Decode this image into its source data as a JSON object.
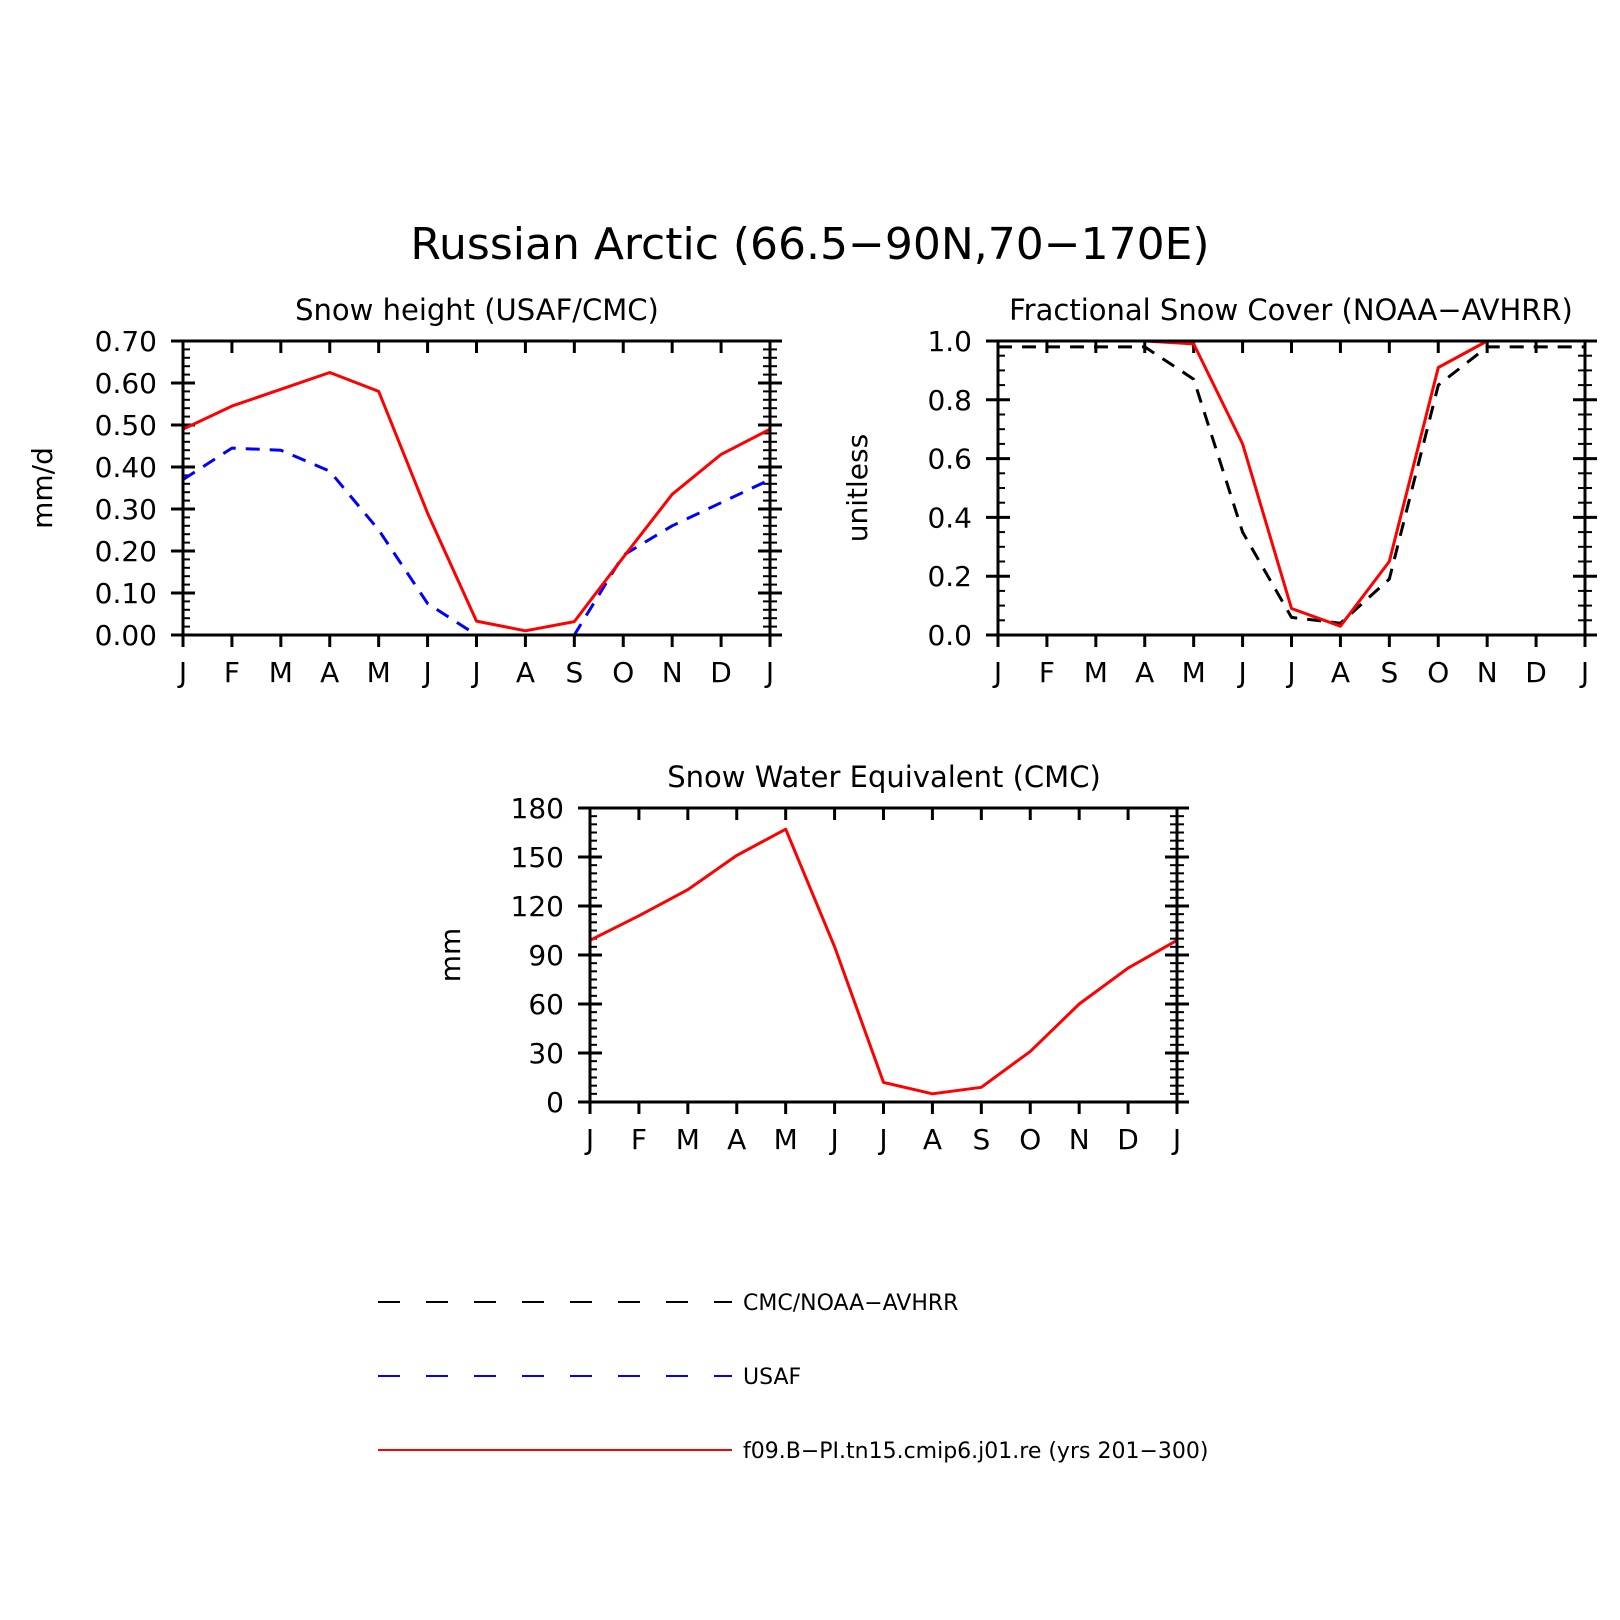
{
  "figure": {
    "title": "Russian Arctic (66.5−90N,70−170E)"
  },
  "months": [
    "J",
    "F",
    "M",
    "A",
    "M",
    "J",
    "J",
    "A",
    "S",
    "O",
    "N",
    "D",
    "J"
  ],
  "legend": {
    "items": [
      {
        "label": "CMC/NOAA−AVHRR",
        "color": "#000000",
        "style": "dashed"
      },
      {
        "label": "USAF",
        "color": "#0000ff",
        "style": "dashed"
      },
      {
        "label": "f09.B−PI.tn15.cmip6.j01.re (yrs 201−300)",
        "color": "#ff0000",
        "style": "solid"
      }
    ]
  },
  "chart_data": [
    {
      "type": "line",
      "title": "Snow height (USAF/CMC)",
      "xlabel": "",
      "ylabel": "mm/d",
      "x": [
        "J",
        "F",
        "M",
        "A",
        "M",
        "J",
        "J",
        "A",
        "S",
        "O",
        "N",
        "D",
        "J"
      ],
      "ylim": [
        0,
        0.7
      ],
      "yticks": [
        "0.00",
        "0.10",
        "0.20",
        "0.30",
        "0.40",
        "0.50",
        "0.60",
        "0.70"
      ],
      "series": [
        {
          "name": "CMC/NOAA−AVHRR",
          "color": "#000000",
          "style": "dashed",
          "values": [
            0,
            0,
            0,
            0,
            0,
            0,
            0,
            0,
            0,
            0,
            0,
            0,
            0
          ]
        },
        {
          "name": "USAF",
          "color": "#0000ff",
          "style": "dashed",
          "values": [
            0.37,
            0.445,
            0.44,
            0.39,
            0.25,
            0.075,
            0.0,
            0.0,
            0.0,
            0.19,
            0.26,
            0.315,
            0.37
          ]
        },
        {
          "name": "f09.B−PI.tn15.cmip6.j01.re (yrs 201−300)",
          "color": "#ff0000",
          "style": "solid",
          "values": [
            0.49,
            0.545,
            0.585,
            0.625,
            0.58,
            0.29,
            0.033,
            0.01,
            0.032,
            0.185,
            0.335,
            0.43,
            0.49
          ]
        }
      ]
    },
    {
      "type": "line",
      "title": "Fractional Snow Cover (NOAA−AVHRR)",
      "xlabel": "",
      "ylabel": "unitless",
      "x": [
        "J",
        "F",
        "M",
        "A",
        "M",
        "J",
        "J",
        "A",
        "S",
        "O",
        "N",
        "D",
        "J"
      ],
      "ylim": [
        0,
        1.0
      ],
      "yticks": [
        "0.0",
        "0.2",
        "0.4",
        "0.6",
        "0.8",
        "1.0"
      ],
      "series": [
        {
          "name": "CMC/NOAA−AVHRR",
          "color": "#000000",
          "style": "dashed",
          "values": [
            0.98,
            0.98,
            0.98,
            0.98,
            0.87,
            0.35,
            0.06,
            0.04,
            0.19,
            0.85,
            0.98,
            0.98,
            0.98
          ]
        },
        {
          "name": "f09.B−PI.tn15.cmip6.j01.re (yrs 201−300)",
          "color": "#ff0000",
          "style": "solid",
          "values": [
            1.0,
            1.0,
            1.0,
            1.0,
            0.99,
            0.65,
            0.09,
            0.03,
            0.25,
            0.91,
            1.0,
            1.0,
            1.0
          ]
        }
      ]
    },
    {
      "type": "line",
      "title": "Snow Water Equivalent (CMC)",
      "xlabel": "",
      "ylabel": "mm",
      "x": [
        "J",
        "F",
        "M",
        "A",
        "M",
        "J",
        "J",
        "A",
        "S",
        "O",
        "N",
        "D",
        "J"
      ],
      "ylim": [
        0,
        180
      ],
      "yticks": [
        "0",
        "30",
        "60",
        "90",
        "120",
        "150",
        "180"
      ],
      "series": [
        {
          "name": "CMC/NOAA−AVHRR",
          "color": "#000000",
          "style": "dashed",
          "values": [
            0,
            0,
            0,
            0,
            0,
            0,
            0,
            0,
            0,
            0,
            0,
            0,
            0
          ]
        },
        {
          "name": "f09.B−PI.tn15.cmip6.j01.re (yrs 201−300)",
          "color": "#ff0000",
          "style": "solid",
          "values": [
            99,
            114,
            130,
            151,
            167,
            95,
            12,
            5,
            9,
            31,
            60,
            82,
            99
          ]
        }
      ]
    }
  ]
}
